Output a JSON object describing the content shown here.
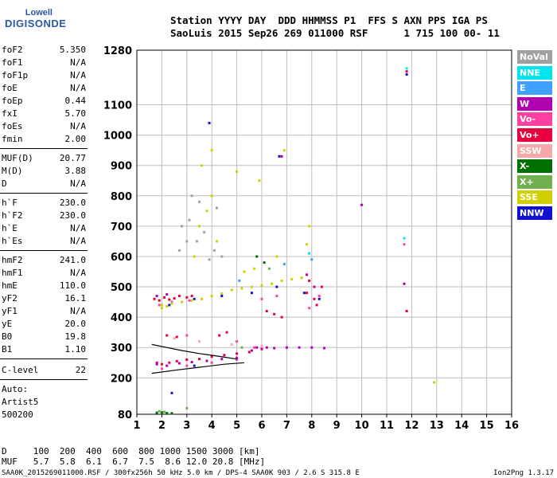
{
  "logo": {
    "top": "Lowell",
    "bottom": "DIGISONDE"
  },
  "header": {
    "line1": "Station YYYY DAY  DDD HHMMSS P1  FFS S AXN PPS IGA PS",
    "line2": "SaoLuis 2015 Sep26 269 011000 RSF      1 715 100 00- 11"
  },
  "params_group1": [
    {
      "name": "foF2",
      "value": "5.350"
    },
    {
      "name": "foF1",
      "value": "N/A"
    },
    {
      "name": "foF1p",
      "value": "N/A"
    },
    {
      "name": "foE",
      "value": "N/A"
    },
    {
      "name": "foEp",
      "value": "0.44"
    },
    {
      "name": "fxI",
      "value": "5.70"
    },
    {
      "name": "foEs",
      "value": "N/A"
    },
    {
      "name": "fmin",
      "value": "2.00"
    }
  ],
  "params_group2": [
    {
      "name": "MUF(D)",
      "value": "20.77"
    },
    {
      "name": "M(D)",
      "value": "3.88"
    },
    {
      "name": "D",
      "value": "N/A"
    }
  ],
  "params_group3": [
    {
      "name": "h`F",
      "value": "230.0"
    },
    {
      "name": "h`F2",
      "value": "230.0"
    },
    {
      "name": "h`E",
      "value": "N/A"
    },
    {
      "name": "h`Es",
      "value": "N/A"
    }
  ],
  "params_group4": [
    {
      "name": "hmF2",
      "value": "241.0"
    },
    {
      "name": "hmF1",
      "value": "N/A"
    },
    {
      "name": "hmE",
      "value": "110.0"
    },
    {
      "name": "yF2",
      "value": "16.1"
    },
    {
      "name": "yF1",
      "value": "N/A"
    },
    {
      "name": "yE",
      "value": "20.0"
    },
    {
      "name": "B0",
      "value": "19.8"
    },
    {
      "name": "B1",
      "value": "1.10"
    }
  ],
  "c_level": {
    "name": "C-level",
    "value": "22"
  },
  "auto": {
    "line1": "Auto:",
    "line2": "Artist5",
    "line3": "500200"
  },
  "legend": [
    {
      "label": "NoVal",
      "color": "#a0a0a0"
    },
    {
      "label": "NNE",
      "color": "#00e5ee"
    },
    {
      "label": "E",
      "color": "#3fa0ff"
    },
    {
      "label": "W",
      "color": "#b000b0"
    },
    {
      "label": "Vo-",
      "color": "#ff40a0"
    },
    {
      "label": "Vo+",
      "color": "#e8003c"
    },
    {
      "label": "SSW",
      "color": "#f4a8a8"
    },
    {
      "label": "X-",
      "color": "#007000"
    },
    {
      "label": "X+",
      "color": "#70b050"
    },
    {
      "label": "SSE",
      "color": "#d0d000"
    },
    {
      "label": "NNW",
      "color": "#1010d0"
    }
  ],
  "bottom": {
    "d_line": "D     100  200  400  600  800 1000 1500 3000 [km]",
    "muf_line": "MUF   5.7  5.8  6.1  6.7  7.5  8.6 12.0 20.8 [MHz]"
  },
  "footer": {
    "left": "SAA0K_2015269011000.RSF / 300fx256h 50 kHz 5.0 km / DPS-4 SAA0K 903 / 2.6 S 315.8 E",
    "right": "Ion2Png 1.3.17"
  },
  "chart_data": {
    "type": "scatter",
    "title": "",
    "xlabel": "",
    "ylabel": "",
    "xlim": [
      1,
      16
    ],
    "ylim": [
      80,
      1280
    ],
    "x_ticks": [
      1,
      2,
      3,
      4,
      5,
      6,
      7,
      8,
      9,
      10,
      11,
      12,
      13,
      14,
      15,
      16
    ],
    "y_ticks": [
      80,
      200,
      300,
      400,
      500,
      600,
      700,
      800,
      900,
      1000,
      1100,
      1280
    ],
    "grid": true,
    "legend_position": "right",
    "series": [
      {
        "name": "Vo+",
        "color": "#e8003c",
        "points": [
          [
            1.7,
            460
          ],
          [
            1.9,
            455
          ],
          [
            2.1,
            465
          ],
          [
            2.3,
            458
          ],
          [
            2.5,
            462
          ],
          [
            2.7,
            470
          ],
          [
            3.0,
            465
          ],
          [
            3.2,
            470
          ],
          [
            1.8,
            250
          ],
          [
            2.0,
            245
          ],
          [
            2.3,
            250
          ],
          [
            2.6,
            255
          ],
          [
            3.0,
            260
          ],
          [
            3.5,
            262
          ],
          [
            4.0,
            270
          ],
          [
            4.5,
            275
          ],
          [
            5.0,
            280
          ],
          [
            5.5,
            285
          ],
          [
            6.2,
            420
          ],
          [
            6.5,
            410
          ],
          [
            6.8,
            400
          ],
          [
            7.8,
            480
          ],
          [
            7.9,
            520
          ],
          [
            8.1,
            460
          ],
          [
            8.2,
            440
          ],
          [
            8.4,
            500
          ],
          [
            4.3,
            340
          ],
          [
            4.6,
            350
          ],
          [
            2.2,
            340
          ],
          [
            2.6,
            335
          ],
          [
            11.8,
            420
          ],
          [
            11.8,
            1210
          ]
        ]
      },
      {
        "name": "Vo-",
        "color": "#ff40a0",
        "points": [
          [
            1.9,
            440
          ],
          [
            2.4,
            450
          ],
          [
            3.1,
            455
          ],
          [
            6.0,
            460
          ],
          [
            6.6,
            470
          ],
          [
            7.9,
            430
          ],
          [
            8.3,
            470
          ],
          [
            5.7,
            300
          ],
          [
            2.0,
            230
          ],
          [
            3.0,
            240
          ],
          [
            4.0,
            250
          ],
          [
            5.0,
            260
          ],
          [
            11.7,
            640
          ],
          [
            3.0,
            340
          ],
          [
            5.0,
            320
          ]
        ]
      },
      {
        "name": "W",
        "color": "#b000b0",
        "points": [
          [
            1.8,
            245
          ],
          [
            2.2,
            240
          ],
          [
            2.7,
            248
          ],
          [
            3.2,
            252
          ],
          [
            3.8,
            256
          ],
          [
            4.4,
            262
          ],
          [
            5.0,
            266
          ],
          [
            5.6,
            290
          ],
          [
            6.0,
            295
          ],
          [
            6.5,
            298
          ],
          [
            7.0,
            300
          ],
          [
            7.5,
            300
          ],
          [
            8.0,
            300
          ],
          [
            8.5,
            298
          ],
          [
            5.8,
            300
          ],
          [
            6.2,
            300
          ],
          [
            7.8,
            540
          ],
          [
            8.1,
            500
          ],
          [
            10.0,
            770
          ],
          [
            11.7,
            510
          ],
          [
            6.8,
            930
          ],
          [
            1.8,
            470
          ],
          [
            2.2,
            475
          ]
        ]
      },
      {
        "name": "SSE",
        "color": "#d0d000",
        "points": [
          [
            2.0,
            440
          ],
          [
            2.4,
            445
          ],
          [
            2.8,
            450
          ],
          [
            3.2,
            455
          ],
          [
            3.6,
            460
          ],
          [
            4.0,
            470
          ],
          [
            4.4,
            478
          ],
          [
            4.8,
            490
          ],
          [
            5.2,
            495
          ],
          [
            5.6,
            500
          ],
          [
            6.0,
            505
          ],
          [
            6.4,
            510
          ],
          [
            6.8,
            520
          ],
          [
            7.2,
            525
          ],
          [
            7.6,
            530
          ],
          [
            3.5,
            700
          ],
          [
            3.8,
            750
          ],
          [
            4.0,
            800
          ],
          [
            4.2,
            650
          ],
          [
            3.3,
            600
          ],
          [
            3.6,
            900
          ],
          [
            4.0,
            950
          ],
          [
            5.9,
            850
          ],
          [
            6.9,
            950
          ],
          [
            5.3,
            550
          ],
          [
            5.7,
            560
          ],
          [
            7.9,
            700
          ],
          [
            7.8,
            640
          ],
          [
            12.9,
            185
          ],
          [
            2.0,
            430
          ],
          [
            2.2,
            436
          ],
          [
            6.6,
            600
          ],
          [
            5.0,
            880
          ]
        ]
      },
      {
        "name": "NNW",
        "color": "#1010d0",
        "points": [
          [
            2.3,
            440
          ],
          [
            3.3,
            460
          ],
          [
            4.4,
            470
          ],
          [
            5.6,
            480
          ],
          [
            6.6,
            500
          ],
          [
            7.7,
            480
          ],
          [
            8.3,
            460
          ],
          [
            6.7,
            930
          ],
          [
            3.9,
            1040
          ],
          [
            11.8,
            1200
          ],
          [
            2.4,
            150
          ],
          [
            3.3,
            240
          ]
        ]
      },
      {
        "name": "X-",
        "color": "#007000",
        "points": [
          [
            1.8,
            85
          ],
          [
            2.0,
            86
          ],
          [
            2.2,
            84
          ],
          [
            2.4,
            83
          ],
          [
            5.8,
            600
          ],
          [
            6.1,
            580
          ]
        ]
      },
      {
        "name": "X+",
        "color": "#70b050",
        "points": [
          [
            1.9,
            90
          ],
          [
            2.1,
            88
          ],
          [
            5.2,
            300
          ],
          [
            6.3,
            560
          ],
          [
            3.0,
            100
          ]
        ]
      },
      {
        "name": "NNE",
        "color": "#00e5ee",
        "points": [
          [
            11.7,
            660
          ],
          [
            11.8,
            1220
          ],
          [
            7.9,
            610
          ]
        ]
      },
      {
        "name": "E",
        "color": "#3fa0ff",
        "points": [
          [
            8.0,
            590
          ],
          [
            6.9,
            575
          ],
          [
            5.1,
            520
          ]
        ]
      },
      {
        "name": "SSW",
        "color": "#f4a8a8",
        "points": [
          [
            2.5,
            330
          ],
          [
            3.5,
            320
          ],
          [
            4.8,
            310
          ],
          [
            6.0,
            305
          ]
        ]
      },
      {
        "name": "NoVal",
        "color": "#a0a0a0",
        "points": [
          [
            2.8,
            700
          ],
          [
            3.1,
            720
          ],
          [
            3.4,
            650
          ],
          [
            3.7,
            680
          ],
          [
            4.1,
            620
          ],
          [
            4.4,
            600
          ],
          [
            2.7,
            620
          ],
          [
            3.2,
            800
          ],
          [
            3.5,
            780
          ],
          [
            3.0,
            650
          ],
          [
            4.2,
            760
          ],
          [
            3.9,
            590
          ]
        ]
      }
    ],
    "trace_lines": [
      {
        "name": "virtual-height-trace",
        "color": "#000000",
        "points": [
          [
            1.6,
            215
          ],
          [
            2.5,
            225
          ],
          [
            3.5,
            235
          ],
          [
            4.5,
            245
          ],
          [
            5.3,
            250
          ]
        ]
      },
      {
        "name": "true-height-trace",
        "color": "#000000",
        "points": [
          [
            1.6,
            310
          ],
          [
            2.2,
            300
          ],
          [
            2.8,
            290
          ],
          [
            3.5,
            280
          ],
          [
            4.2,
            272
          ],
          [
            5.0,
            262
          ]
        ]
      }
    ]
  }
}
